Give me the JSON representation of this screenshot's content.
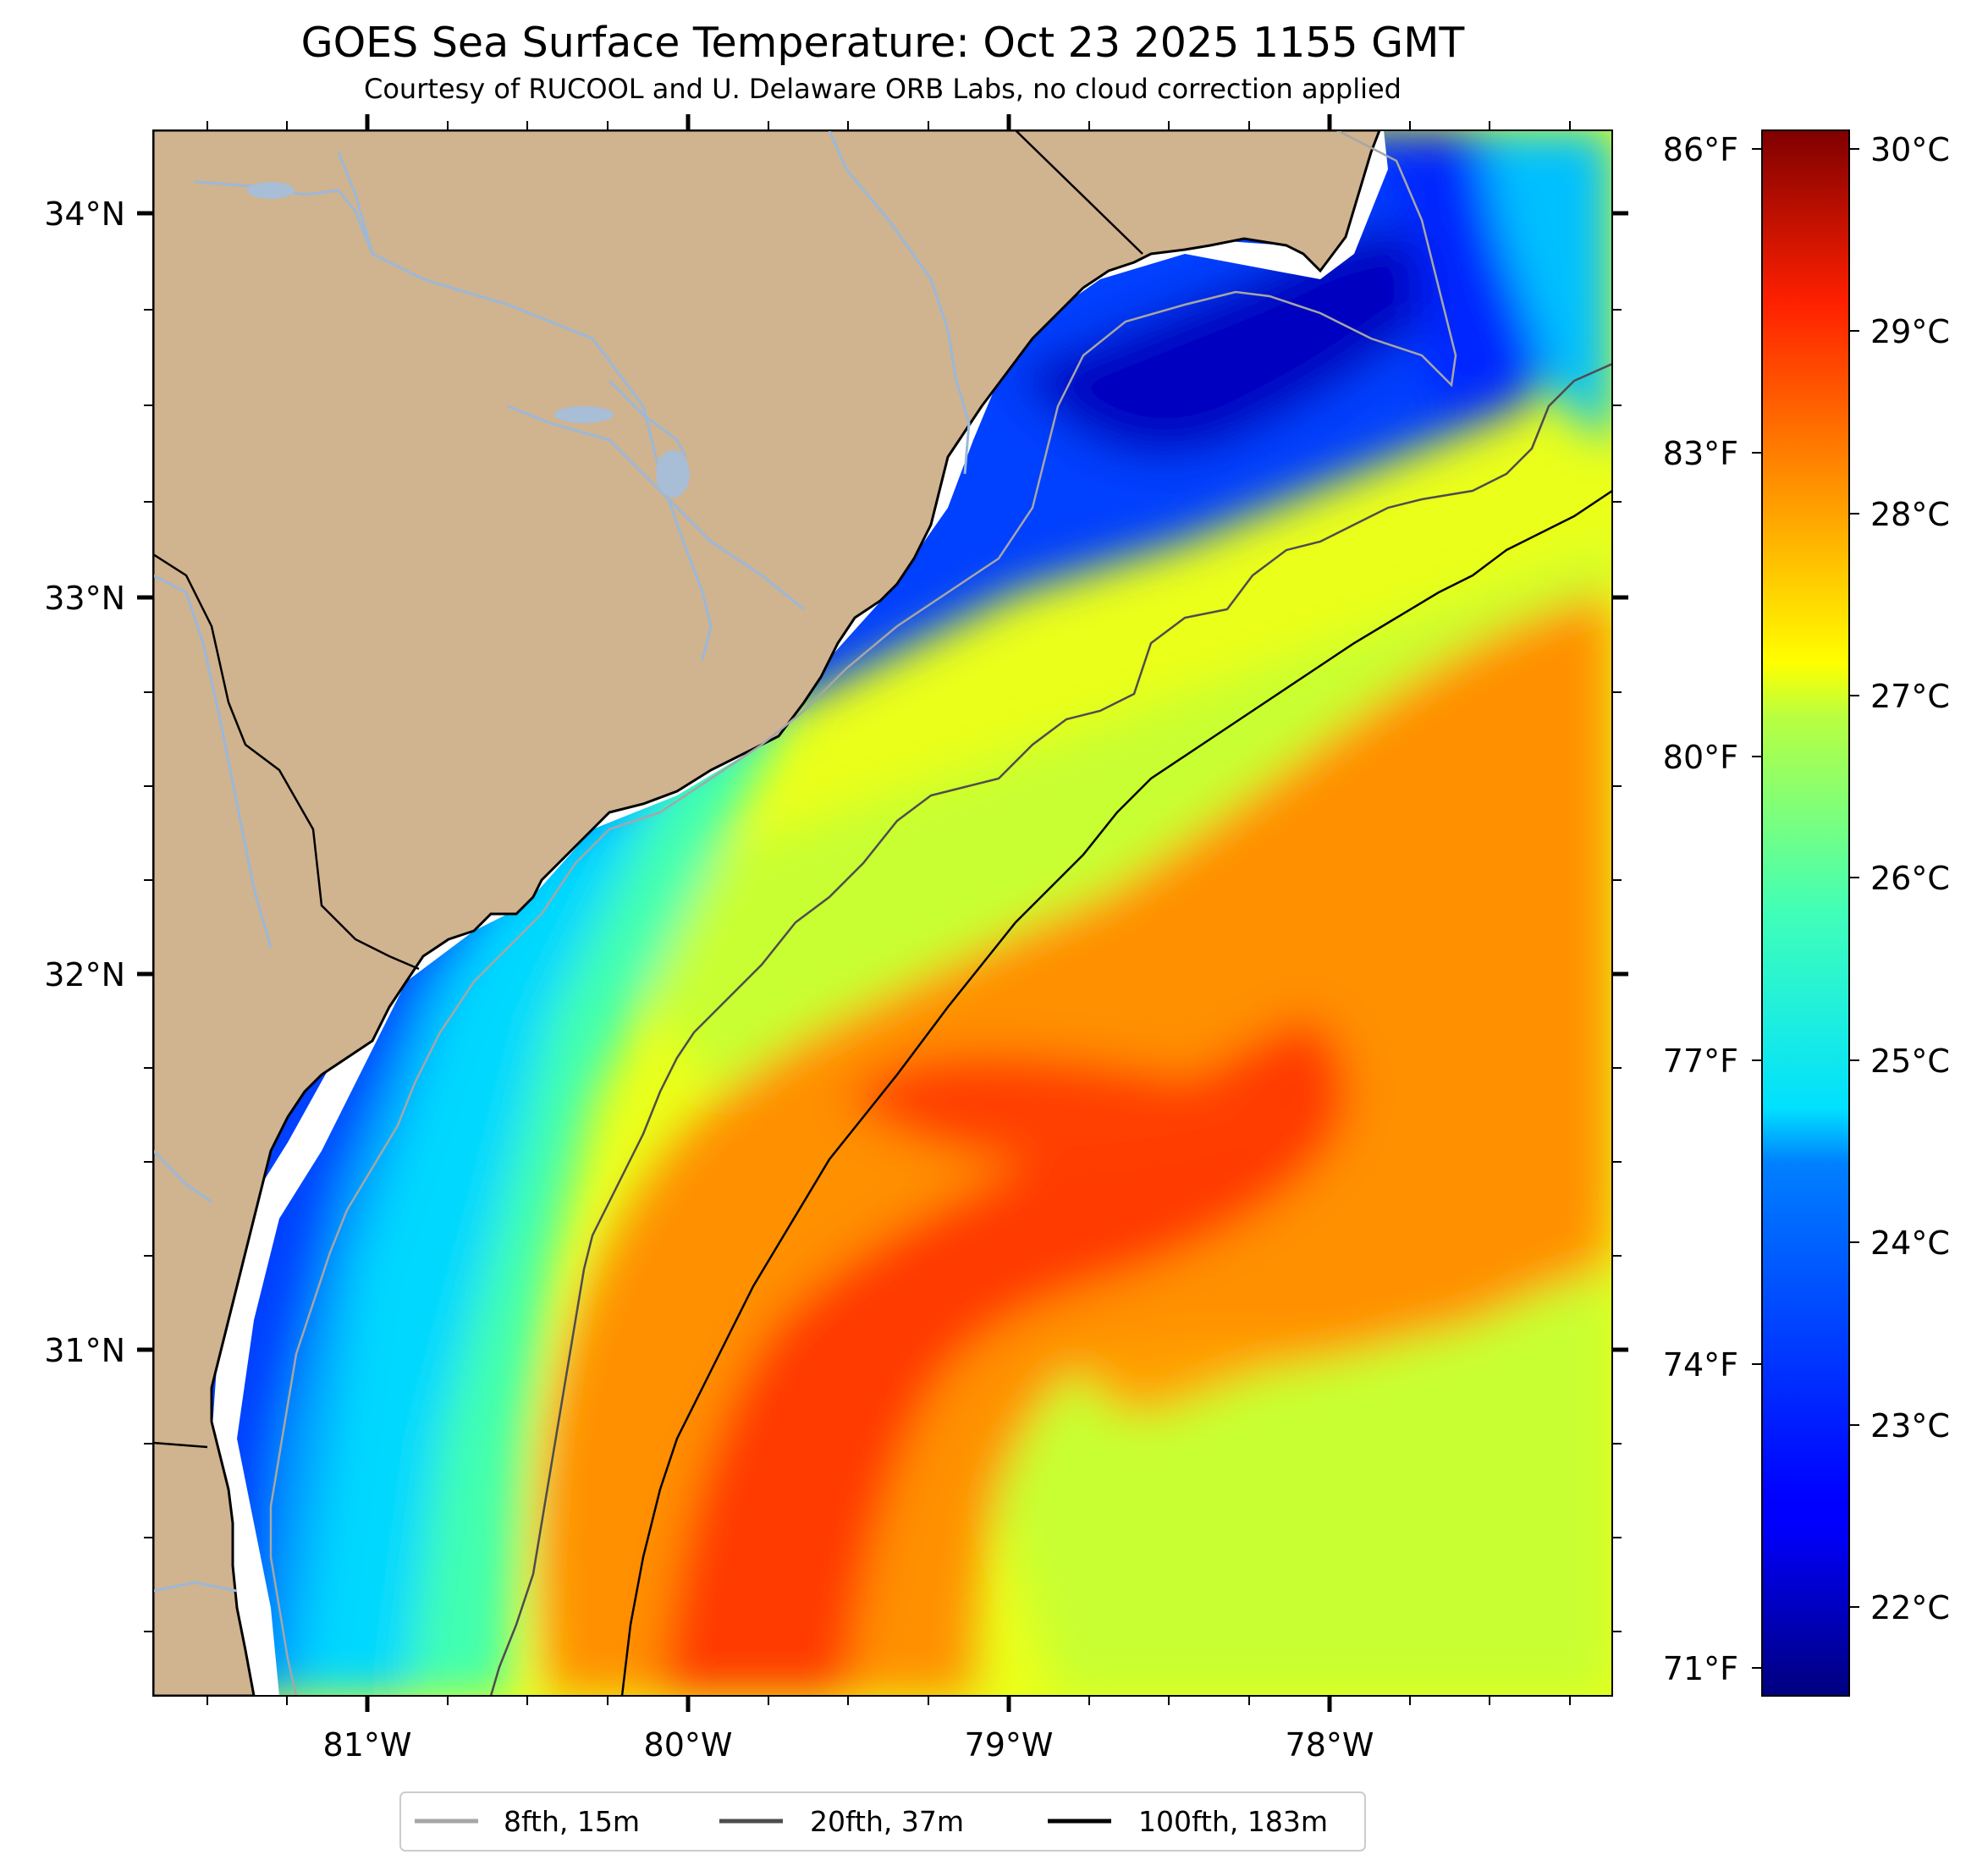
{
  "title": "GOES Sea Surface Temperature: Oct 23 2025 1155 GMT",
  "subtitle": "Courtesy of RUCOOL and U. Delaware ORB Labs, no cloud correction applied",
  "map": {
    "lat_range": [
      30.2,
      34.2
    ],
    "lon_range": [
      -81.67,
      -77.1
    ],
    "lat_ticks": [
      "34°N",
      "33°N",
      "32°N",
      "31°N"
    ],
    "lon_ticks": [
      "81°W",
      "80°W",
      "79°W",
      "78°W"
    ],
    "land_color": "#d0b38f",
    "river_color": "#9bb8d9",
    "coast_color": "#000000",
    "nodata_color": "#ffffff"
  },
  "fahrenheit_ticks": [
    "86°F",
    "83°F",
    "80°F",
    "77°F",
    "74°F",
    "71°F"
  ],
  "colorbar": {
    "colormap": "jet",
    "range_c": [
      21.5,
      30.1
    ],
    "ticks": [
      "30°C",
      "29°C",
      "28°C",
      "27°C",
      "26°C",
      "25°C",
      "24°C",
      "23°C",
      "22°C"
    ]
  },
  "legend": {
    "items": [
      {
        "label": "8fth, 15m",
        "color": "#a6a6a6"
      },
      {
        "label": "20fth, 37m",
        "color": "#4d4d4d"
      },
      {
        "label": "100fth, 183m",
        "color": "#000000"
      }
    ]
  }
}
